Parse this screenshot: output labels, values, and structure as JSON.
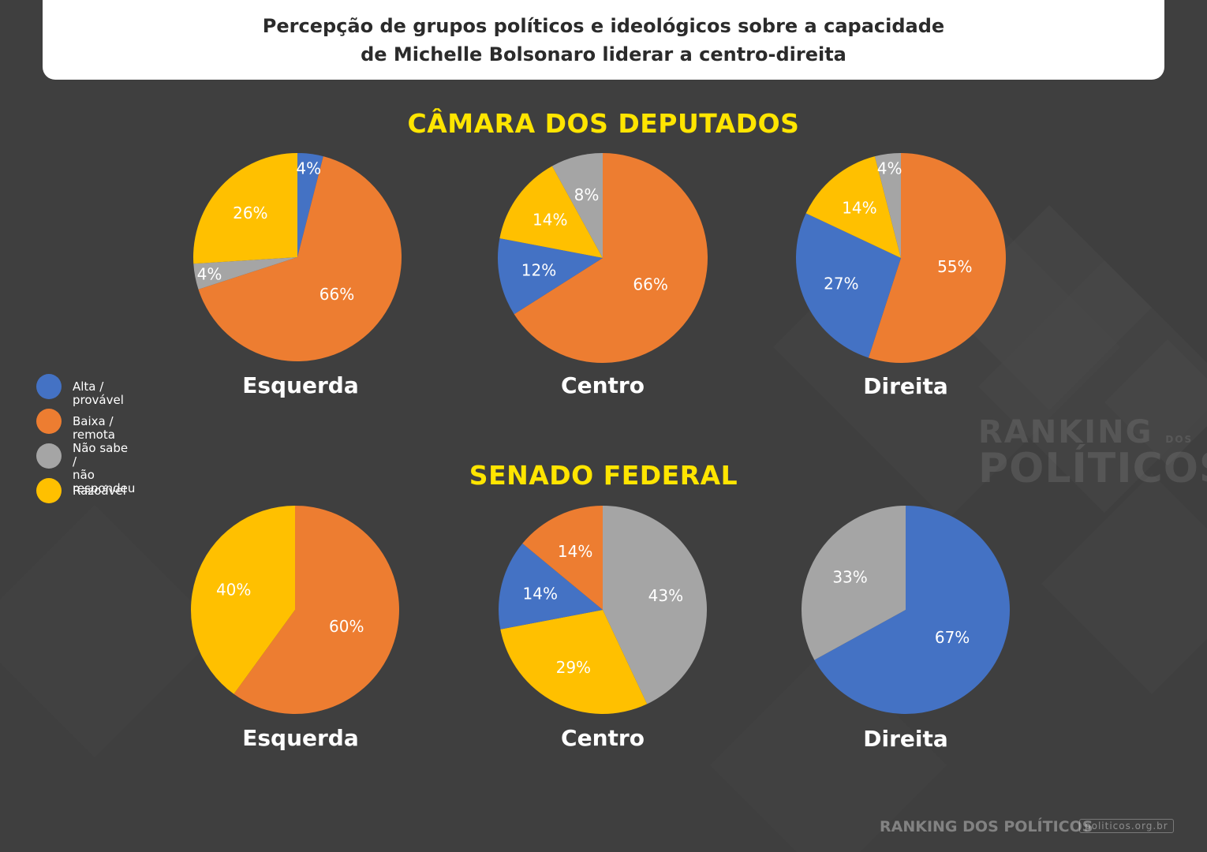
{
  "title": {
    "line1": "Percepção de grupos políticos e ideológicos sobre a capacidade",
    "line2": "de Michelle Bolsonaro liderar a centro-direita"
  },
  "legend": [
    {
      "label": "Alta / provável",
      "color": "#4472c4"
    },
    {
      "label": "Baixa / remota",
      "color": "#ed7d31"
    },
    {
      "label": "Não sabe /\nnão respondeu",
      "color": "#a5a5a5"
    },
    {
      "label": "Razoável",
      "color": "#ffc000"
    }
  ],
  "watermark": {
    "line1": "RANKING",
    "line2": "POLÍTICOS",
    "small": "DOS"
  },
  "footer": {
    "brand": "RANKING DOS POLÍTICOS",
    "url": "politicos.org.br"
  },
  "chart_data": [
    {
      "type": "pie",
      "section": "CÂMARA DOS DEPUTADOS",
      "title": "Esquerda",
      "slices": [
        {
          "label": "Alta / provável",
          "value": 4,
          "display": "4%",
          "color": "#4472c4"
        },
        {
          "label": "Baixa / remota",
          "value": 66,
          "display": "66%",
          "color": "#ed7d31"
        },
        {
          "label": "Não sabe / não respondeu",
          "value": 4,
          "display": "4%",
          "color": "#a5a5a5"
        },
        {
          "label": "Razoável",
          "value": 26,
          "display": "26%",
          "color": "#ffc000"
        }
      ]
    },
    {
      "type": "pie",
      "section": "CÂMARA DOS DEPUTADOS",
      "title": "Centro",
      "slices": [
        {
          "label": "Baixa / remota",
          "value": 66,
          "display": "66%",
          "color": "#ed7d31"
        },
        {
          "label": "Alta / provável",
          "value": 12,
          "display": "12%",
          "color": "#4472c4"
        },
        {
          "label": "Razoável",
          "value": 14,
          "display": "14%",
          "color": "#ffc000"
        },
        {
          "label": "Não sabe / não respondeu",
          "value": 8,
          "display": "8%",
          "color": "#a5a5a5"
        }
      ]
    },
    {
      "type": "pie",
      "section": "CÂMARA DOS DEPUTADOS",
      "title": "Direita",
      "slices": [
        {
          "label": "Baixa / remota",
          "value": 55,
          "display": "55%",
          "color": "#ed7d31"
        },
        {
          "label": "Alta / provável",
          "value": 27,
          "display": "27%",
          "color": "#4472c4"
        },
        {
          "label": "Razoável",
          "value": 14,
          "display": "14%",
          "color": "#ffc000"
        },
        {
          "label": "Não sabe / não respondeu",
          "value": 4,
          "display": "4%",
          "color": "#a5a5a5"
        }
      ]
    },
    {
      "type": "pie",
      "section": "SENADO FEDERAL",
      "title": "Esquerda",
      "slices": [
        {
          "label": "Baixa / remota",
          "value": 60,
          "display": "60%",
          "color": "#ed7d31"
        },
        {
          "label": "Razoável",
          "value": 40,
          "display": "40%",
          "color": "#ffc000"
        }
      ]
    },
    {
      "type": "pie",
      "section": "SENADO FEDERAL",
      "title": "Centro",
      "slices": [
        {
          "label": "Não sabe / não respondeu",
          "value": 43,
          "display": "43%",
          "color": "#a5a5a5"
        },
        {
          "label": "Razoável",
          "value": 29,
          "display": "29%",
          "color": "#ffc000"
        },
        {
          "label": "Alta / provável",
          "value": 14,
          "display": "14%",
          "color": "#4472c4"
        },
        {
          "label": "Baixa / remota",
          "value": 14,
          "display": "14%",
          "color": "#ed7d31"
        }
      ]
    },
    {
      "type": "pie",
      "section": "SENADO FEDERAL",
      "title": "Direita",
      "slices": [
        {
          "label": "Alta / provável",
          "value": 67,
          "display": "67%",
          "color": "#4472c4"
        },
        {
          "label": "Não sabe / não respondeu",
          "value": 33,
          "display": "33%",
          "color": "#a5a5a5"
        }
      ]
    }
  ]
}
